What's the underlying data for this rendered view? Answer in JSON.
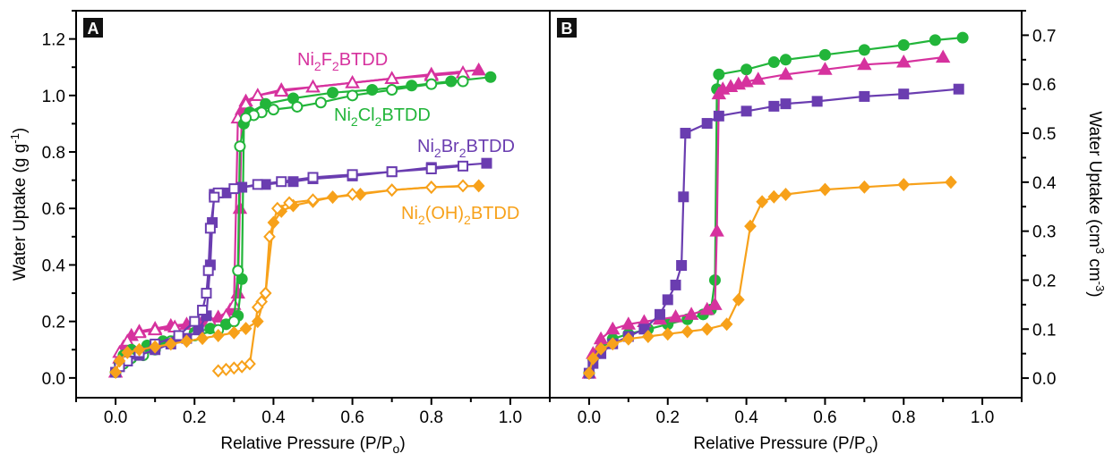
{
  "chart_data": [
    {
      "type": "line",
      "panel_label": "A",
      "xlabel": "Relative Pressure (P/P",
      "xlabel_sub": "o",
      "xlabel_end": ")",
      "ylabel": "Water Uptake (g g",
      "ylabel_sup": "-1",
      "ylabel_end": ")",
      "xlim": [
        -0.1,
        1.1
      ],
      "ylim": [
        -0.07,
        1.3
      ],
      "xticks": [
        "0.0",
        "0.2",
        "0.4",
        "0.6",
        "0.8",
        "1.0"
      ],
      "yticks": [
        "0.0",
        "0.2",
        "0.4",
        "0.6",
        "0.8",
        "1.0",
        "1.2"
      ],
      "grid": false,
      "series": [
        {
          "name": [
            "Ni",
            "2",
            "F",
            "2",
            "BTDD"
          ],
          "color": "#D6329E",
          "marker": "triangle",
          "adsorption": [
            [
              0.0,
              0.02
            ],
            [
              0.01,
              0.07
            ],
            [
              0.02,
              0.11
            ],
            [
              0.04,
              0.15
            ],
            [
              0.06,
              0.165
            ],
            [
              0.1,
              0.175
            ],
            [
              0.14,
              0.185
            ],
            [
              0.18,
              0.19
            ],
            [
              0.22,
              0.2
            ],
            [
              0.26,
              0.215
            ],
            [
              0.29,
              0.24
            ],
            [
              0.31,
              0.3
            ],
            [
              0.315,
              0.6
            ],
            [
              0.32,
              0.95
            ],
            [
              0.33,
              0.98
            ],
            [
              0.36,
              1.0
            ],
            [
              0.42,
              1.02
            ],
            [
              0.5,
              1.03
            ],
            [
              0.6,
              1.045
            ],
            [
              0.7,
              1.06
            ],
            [
              0.8,
              1.075
            ],
            [
              0.92,
              1.09
            ]
          ],
          "desorption": [
            [
              0.88,
              1.08
            ],
            [
              0.8,
              1.07
            ],
            [
              0.7,
              1.06
            ],
            [
              0.6,
              1.045
            ],
            [
              0.5,
              1.03
            ],
            [
              0.42,
              1.015
            ],
            [
              0.36,
              1.0
            ],
            [
              0.33,
              0.97
            ],
            [
              0.31,
              0.92
            ],
            [
              0.3,
              0.26
            ],
            [
              0.28,
              0.22
            ],
            [
              0.24,
              0.2
            ],
            [
              0.2,
              0.19
            ],
            [
              0.15,
              0.18
            ],
            [
              0.1,
              0.17
            ],
            [
              0.06,
              0.16
            ],
            [
              0.03,
              0.13
            ],
            [
              0.01,
              0.09
            ]
          ]
        },
        {
          "name": [
            "Ni",
            "2",
            "Cl",
            "2",
            "BTDD"
          ],
          "color": "#22B53A",
          "marker": "circle",
          "adsorption": [
            [
              0.0,
              0.02
            ],
            [
              0.01,
              0.05
            ],
            [
              0.02,
              0.08
            ],
            [
              0.04,
              0.1
            ],
            [
              0.08,
              0.115
            ],
            [
              0.12,
              0.13
            ],
            [
              0.16,
              0.145
            ],
            [
              0.2,
              0.16
            ],
            [
              0.24,
              0.175
            ],
            [
              0.28,
              0.19
            ],
            [
              0.3,
              0.2
            ],
            [
              0.31,
              0.22
            ],
            [
              0.32,
              0.35
            ],
            [
              0.325,
              0.9
            ],
            [
              0.34,
              0.94
            ],
            [
              0.38,
              0.97
            ],
            [
              0.45,
              0.99
            ],
            [
              0.55,
              1.01
            ],
            [
              0.65,
              1.02
            ],
            [
              0.75,
              1.035
            ],
            [
              0.85,
              1.05
            ],
            [
              0.95,
              1.065
            ]
          ],
          "desorption": [
            [
              0.88,
              1.05
            ],
            [
              0.8,
              1.04
            ],
            [
              0.7,
              1.02
            ],
            [
              0.6,
              1.0
            ],
            [
              0.52,
              0.975
            ],
            [
              0.46,
              0.96
            ],
            [
              0.4,
              0.95
            ],
            [
              0.37,
              0.94
            ],
            [
              0.35,
              0.93
            ],
            [
              0.33,
              0.92
            ],
            [
              0.315,
              0.82
            ],
            [
              0.31,
              0.38
            ],
            [
              0.3,
              0.2
            ],
            [
              0.26,
              0.17
            ],
            [
              0.2,
              0.15
            ],
            [
              0.14,
              0.13
            ],
            [
              0.1,
              0.1
            ],
            [
              0.07,
              0.08
            ],
            [
              0.04,
              0.07
            ],
            [
              0.02,
              0.05
            ]
          ]
        },
        {
          "name": [
            "Ni",
            "2",
            "Br",
            "2",
            "BTDD"
          ],
          "color": "#6A3DB0",
          "marker": "square",
          "adsorption": [
            [
              0.0,
              0.02
            ],
            [
              0.01,
              0.04
            ],
            [
              0.03,
              0.06
            ],
            [
              0.06,
              0.08
            ],
            [
              0.1,
              0.1
            ],
            [
              0.14,
              0.12
            ],
            [
              0.18,
              0.14
            ],
            [
              0.21,
              0.17
            ],
            [
              0.23,
              0.22
            ],
            [
              0.24,
              0.4
            ],
            [
              0.245,
              0.55
            ],
            [
              0.25,
              0.65
            ],
            [
              0.28,
              0.655
            ],
            [
              0.32,
              0.675
            ],
            [
              0.38,
              0.685
            ],
            [
              0.45,
              0.695
            ],
            [
              0.5,
              0.705
            ],
            [
              0.6,
              0.715
            ],
            [
              0.7,
              0.73
            ],
            [
              0.8,
              0.745
            ],
            [
              0.94,
              0.76
            ]
          ],
          "desorption": [
            [
              0.88,
              0.75
            ],
            [
              0.8,
              0.74
            ],
            [
              0.7,
              0.73
            ],
            [
              0.6,
              0.72
            ],
            [
              0.5,
              0.71
            ],
            [
              0.42,
              0.695
            ],
            [
              0.36,
              0.685
            ],
            [
              0.3,
              0.67
            ],
            [
              0.26,
              0.655
            ],
            [
              0.25,
              0.64
            ],
            [
              0.24,
              0.53
            ],
            [
              0.235,
              0.38
            ],
            [
              0.23,
              0.3
            ],
            [
              0.22,
              0.24
            ],
            [
              0.2,
              0.2
            ],
            [
              0.16,
              0.15
            ],
            [
              0.1,
              0.12
            ],
            [
              0.06,
              0.09
            ],
            [
              0.03,
              0.06
            ],
            [
              0.01,
              0.04
            ]
          ]
        },
        {
          "name": [
            "Ni",
            "2",
            "(OH)",
            "2",
            "BTDD"
          ],
          "color": "#F7A11A",
          "marker": "diamond",
          "adsorption": [
            [
              0.0,
              0.02
            ],
            [
              0.01,
              0.06
            ],
            [
              0.03,
              0.09
            ],
            [
              0.06,
              0.1
            ],
            [
              0.1,
              0.11
            ],
            [
              0.14,
              0.12
            ],
            [
              0.18,
              0.13
            ],
            [
              0.22,
              0.14
            ],
            [
              0.26,
              0.15
            ],
            [
              0.3,
              0.16
            ],
            [
              0.33,
              0.175
            ],
            [
              0.36,
              0.2
            ],
            [
              0.38,
              0.3
            ],
            [
              0.4,
              0.55
            ],
            [
              0.42,
              0.59
            ],
            [
              0.45,
              0.61
            ],
            [
              0.5,
              0.625
            ],
            [
              0.55,
              0.64
            ],
            [
              0.62,
              0.65
            ],
            [
              0.7,
              0.665
            ],
            [
              0.8,
              0.675
            ],
            [
              0.92,
              0.68
            ]
          ],
          "desorption": [
            [
              0.88,
              0.68
            ],
            [
              0.8,
              0.675
            ],
            [
              0.7,
              0.665
            ],
            [
              0.6,
              0.65
            ],
            [
              0.5,
              0.63
            ],
            [
              0.44,
              0.62
            ],
            [
              0.41,
              0.6
            ],
            [
              0.39,
              0.5
            ],
            [
              0.38,
              0.3
            ],
            [
              0.37,
              0.27
            ],
            [
              0.36,
              0.25
            ],
            [
              0.34,
              0.05
            ],
            [
              0.32,
              0.04
            ],
            [
              0.3,
              0.035
            ],
            [
              0.28,
              0.03
            ],
            [
              0.26,
              0.025
            ]
          ]
        }
      ]
    },
    {
      "type": "line",
      "panel_label": "B",
      "xlabel": "Relative Pressure (P/P",
      "xlabel_sub": "o",
      "xlabel_end": ")",
      "ylabel": "Water Uptake (cm",
      "ylabel_sup": "3",
      "ylabel_mid": " cm",
      "ylabel_sup2": "-3",
      "ylabel_end": ")",
      "xlim": [
        -0.1,
        1.1
      ],
      "ylim": [
        -0.04,
        0.75
      ],
      "xticks": [
        "0.0",
        "0.2",
        "0.4",
        "0.6",
        "0.8",
        "1.0"
      ],
      "yticks": [
        "0.0",
        "0.1",
        "0.2",
        "0.3",
        "0.4",
        "0.5",
        "0.6",
        "0.7"
      ],
      "grid": false,
      "series": [
        {
          "color": "#22B53A",
          "marker": "circle",
          "values": [
            [
              0.0,
              0.01
            ],
            [
              0.01,
              0.04
            ],
            [
              0.03,
              0.06
            ],
            [
              0.06,
              0.08
            ],
            [
              0.1,
              0.09
            ],
            [
              0.15,
              0.1
            ],
            [
              0.2,
              0.11
            ],
            [
              0.25,
              0.12
            ],
            [
              0.29,
              0.13
            ],
            [
              0.31,
              0.14
            ],
            [
              0.32,
              0.2
            ],
            [
              0.325,
              0.59
            ],
            [
              0.33,
              0.62
            ],
            [
              0.4,
              0.63
            ],
            [
              0.47,
              0.645
            ],
            [
              0.5,
              0.65
            ],
            [
              0.6,
              0.66
            ],
            [
              0.7,
              0.67
            ],
            [
              0.8,
              0.68
            ],
            [
              0.88,
              0.69
            ],
            [
              0.95,
              0.695
            ]
          ]
        },
        {
          "color": "#D6329E",
          "marker": "triangle",
          "values": [
            [
              0.0,
              0.01
            ],
            [
              0.01,
              0.05
            ],
            [
              0.03,
              0.08
            ],
            [
              0.06,
              0.1
            ],
            [
              0.1,
              0.11
            ],
            [
              0.14,
              0.115
            ],
            [
              0.18,
              0.12
            ],
            [
              0.22,
              0.125
            ],
            [
              0.26,
              0.13
            ],
            [
              0.3,
              0.14
            ],
            [
              0.32,
              0.15
            ],
            [
              0.325,
              0.3
            ],
            [
              0.33,
              0.58
            ],
            [
              0.34,
              0.59
            ],
            [
              0.36,
              0.595
            ],
            [
              0.38,
              0.6
            ],
            [
              0.4,
              0.605
            ],
            [
              0.43,
              0.61
            ],
            [
              0.5,
              0.62
            ],
            [
              0.6,
              0.63
            ],
            [
              0.7,
              0.64
            ],
            [
              0.8,
              0.645
            ],
            [
              0.9,
              0.655
            ]
          ]
        },
        {
          "color": "#6A3DB0",
          "marker": "square",
          "values": [
            [
              0.0,
              0.01
            ],
            [
              0.01,
              0.03
            ],
            [
              0.03,
              0.05
            ],
            [
              0.06,
              0.07
            ],
            [
              0.1,
              0.085
            ],
            [
              0.14,
              0.1
            ],
            [
              0.18,
              0.13
            ],
            [
              0.2,
              0.16
            ],
            [
              0.22,
              0.19
            ],
            [
              0.235,
              0.23
            ],
            [
              0.24,
              0.37
            ],
            [
              0.245,
              0.5
            ],
            [
              0.3,
              0.52
            ],
            [
              0.33,
              0.535
            ],
            [
              0.4,
              0.545
            ],
            [
              0.47,
              0.555
            ],
            [
              0.5,
              0.56
            ],
            [
              0.58,
              0.565
            ],
            [
              0.7,
              0.575
            ],
            [
              0.8,
              0.58
            ],
            [
              0.94,
              0.59
            ]
          ]
        },
        {
          "color": "#F7A11A",
          "marker": "diamond",
          "values": [
            [
              0.0,
              0.01
            ],
            [
              0.01,
              0.04
            ],
            [
              0.03,
              0.06
            ],
            [
              0.06,
              0.07
            ],
            [
              0.1,
              0.08
            ],
            [
              0.15,
              0.085
            ],
            [
              0.2,
              0.09
            ],
            [
              0.25,
              0.095
            ],
            [
              0.3,
              0.1
            ],
            [
              0.35,
              0.11
            ],
            [
              0.38,
              0.16
            ],
            [
              0.41,
              0.31
            ],
            [
              0.44,
              0.36
            ],
            [
              0.47,
              0.37
            ],
            [
              0.5,
              0.375
            ],
            [
              0.6,
              0.385
            ],
            [
              0.7,
              0.39
            ],
            [
              0.8,
              0.395
            ],
            [
              0.92,
              0.4
            ]
          ]
        }
      ]
    }
  ]
}
